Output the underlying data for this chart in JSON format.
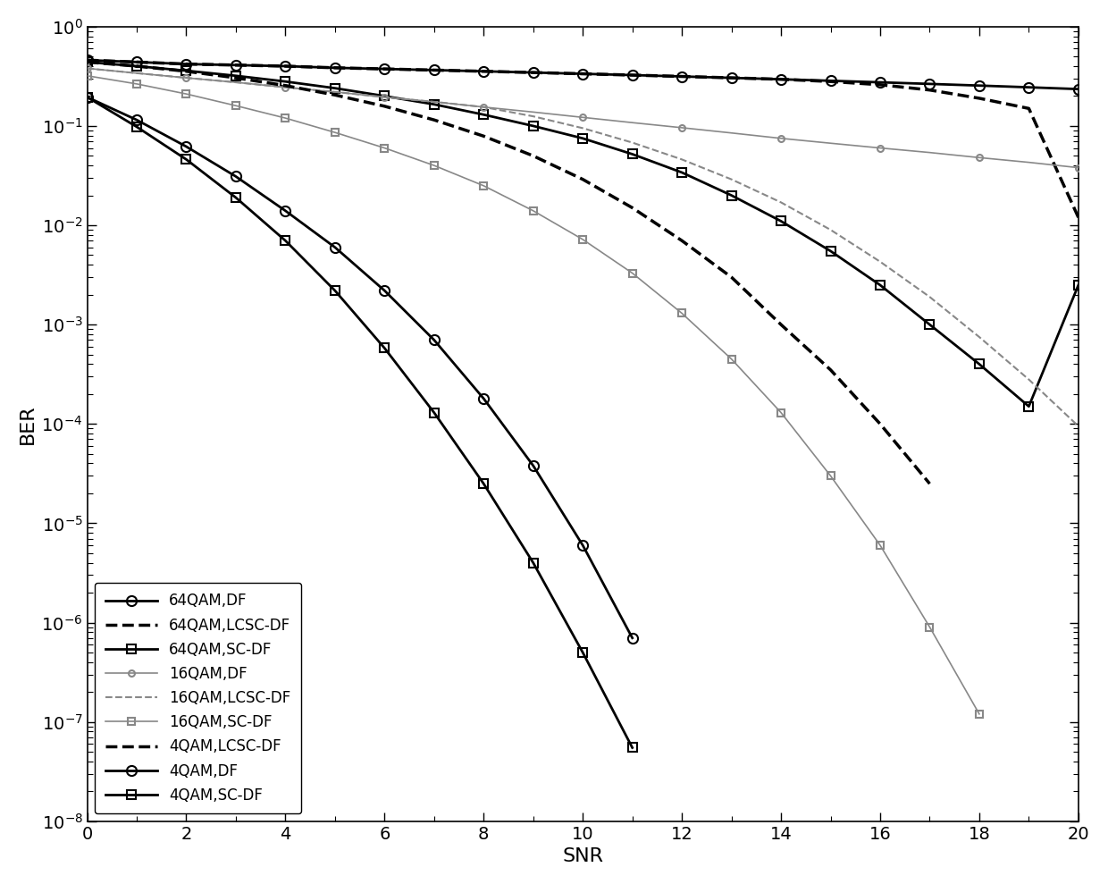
{
  "xlabel": "SNR",
  "ylabel": "BER",
  "xlim": [
    0,
    20
  ],
  "background_color": "#ffffff",
  "tick_fontsize": 14,
  "label_fontsize": 16,
  "legend_fontsize": 12,
  "series": [
    {
      "label": "64QAM,DF",
      "snr": [
        0,
        1,
        2,
        3,
        4,
        5,
        6,
        7,
        8,
        9,
        10,
        11,
        12,
        13,
        14,
        15,
        16,
        17,
        18,
        19,
        20
      ],
      "ber": [
        0.46,
        0.44,
        0.42,
        0.41,
        0.4,
        0.385,
        0.375,
        0.365,
        0.355,
        0.345,
        0.335,
        0.325,
        0.315,
        0.305,
        0.295,
        0.285,
        0.275,
        0.265,
        0.255,
        0.245,
        0.235
      ],
      "linestyle": "-",
      "marker": "o",
      "color": "#000000",
      "lw": 2.0,
      "ms": 8,
      "markevery": 1,
      "gray": false
    },
    {
      "label": "64QAM,LCSC-DF",
      "snr": [
        0,
        1,
        2,
        3,
        4,
        5,
        6,
        7,
        8,
        9,
        10,
        11,
        12,
        13,
        14,
        15,
        16,
        17,
        18,
        19,
        20
      ],
      "ber": [
        0.46,
        0.44,
        0.42,
        0.41,
        0.4,
        0.385,
        0.375,
        0.365,
        0.355,
        0.345,
        0.335,
        0.325,
        0.315,
        0.305,
        0.295,
        0.28,
        0.26,
        0.23,
        0.19,
        0.15,
        0.012
      ],
      "linestyle": "--",
      "marker": "",
      "color": "#000000",
      "lw": 2.5,
      "ms": 0,
      "markevery": 1,
      "gray": false
    },
    {
      "label": "64QAM,SC-DF",
      "snr": [
        0,
        1,
        2,
        3,
        4,
        5,
        6,
        7,
        8,
        9,
        10,
        11,
        12,
        13,
        14,
        15,
        16,
        17,
        18,
        19,
        20
      ],
      "ber": [
        0.44,
        0.4,
        0.36,
        0.32,
        0.28,
        0.24,
        0.2,
        0.165,
        0.13,
        0.1,
        0.075,
        0.052,
        0.034,
        0.02,
        0.011,
        0.0055,
        0.0025,
        0.001,
        0.0004,
        0.00015,
        0.0025
      ],
      "linestyle": "-",
      "marker": "s",
      "color": "#000000",
      "lw": 2.0,
      "ms": 7,
      "markevery": 1,
      "gray": false
    },
    {
      "label": "16QAM,DF",
      "snr": [
        0,
        1,
        2,
        3,
        4,
        5,
        6,
        7,
        8,
        9,
        10,
        11,
        12,
        13,
        14,
        15,
        16,
        17,
        18,
        19,
        20
      ],
      "ber": [
        0.38,
        0.34,
        0.305,
        0.275,
        0.245,
        0.22,
        0.195,
        0.175,
        0.155,
        0.138,
        0.122,
        0.108,
        0.096,
        0.085,
        0.075,
        0.067,
        0.06,
        0.054,
        0.048,
        0.043,
        0.038
      ],
      "linestyle": "-",
      "marker": "o",
      "color": "#888888",
      "lw": 1.2,
      "ms": 5,
      "markevery": 2,
      "gray": true
    },
    {
      "label": "16QAM,LCSC-DF",
      "snr": [
        0,
        1,
        2,
        3,
        4,
        5,
        6,
        7,
        8,
        9,
        10,
        11,
        12,
        13,
        14,
        15,
        16,
        17,
        18,
        19,
        20
      ],
      "ber": [
        0.38,
        0.34,
        0.305,
        0.275,
        0.245,
        0.22,
        0.195,
        0.175,
        0.155,
        0.125,
        0.095,
        0.068,
        0.046,
        0.029,
        0.017,
        0.009,
        0.0043,
        0.0019,
        0.00075,
        0.00028,
        9.5e-05
      ],
      "linestyle": "--",
      "marker": "",
      "color": "#888888",
      "lw": 1.5,
      "ms": 0,
      "markevery": 1,
      "gray": true
    },
    {
      "label": "16QAM,SC-DF",
      "snr": [
        0,
        1,
        2,
        3,
        4,
        5,
        6,
        7,
        8,
        9,
        10,
        11,
        12,
        13,
        14,
        15,
        16,
        17,
        18
      ],
      "ber": [
        0.32,
        0.265,
        0.21,
        0.16,
        0.12,
        0.086,
        0.06,
        0.04,
        0.025,
        0.014,
        0.0072,
        0.0033,
        0.0013,
        0.00045,
        0.00013,
        3e-05,
        6e-06,
        9e-07,
        1.2e-07
      ],
      "linestyle": "-",
      "marker": "s",
      "color": "#888888",
      "lw": 1.2,
      "ms": 6,
      "markevery": 1,
      "gray": true
    },
    {
      "label": "4QAM,LCSC-DF",
      "snr": [
        0,
        1,
        2,
        3,
        4,
        5,
        6,
        7,
        8,
        9,
        10,
        11,
        12,
        13,
        14,
        15,
        16,
        17
      ],
      "ber": [
        0.44,
        0.4,
        0.355,
        0.305,
        0.255,
        0.205,
        0.158,
        0.115,
        0.079,
        0.05,
        0.029,
        0.015,
        0.007,
        0.003,
        0.001,
        0.00035,
        0.0001,
        2.5e-05
      ],
      "linestyle": "--",
      "marker": "",
      "color": "#000000",
      "lw": 2.5,
      "ms": 0,
      "markevery": 1,
      "gray": false
    },
    {
      "label": "4QAM,DF",
      "snr": [
        0,
        1,
        2,
        3,
        4,
        5,
        6,
        7,
        8,
        9,
        10,
        11
      ],
      "ber": [
        0.195,
        0.115,
        0.062,
        0.031,
        0.014,
        0.006,
        0.0022,
        0.0007,
        0.00018,
        3.8e-05,
        6e-06,
        7e-07
      ],
      "linestyle": "-",
      "marker": "o",
      "color": "#000000",
      "lw": 2.0,
      "ms": 8,
      "markevery": 1,
      "gray": false
    },
    {
      "label": "4QAM,SC-DF",
      "snr": [
        0,
        1,
        2,
        3,
        4,
        5,
        6,
        7,
        8,
        9,
        10,
        11,
        12,
        13,
        14,
        15,
        16
      ],
      "ber": [
        0.195,
        0.098,
        0.046,
        0.019,
        0.007,
        0.0022,
        0.00058,
        0.00013,
        2.5e-05,
        4e-06,
        5e-07,
        5.5e-08,
        null,
        null,
        null,
        null,
        null
      ],
      "linestyle": "-",
      "marker": "s",
      "color": "#000000",
      "lw": 2.0,
      "ms": 7,
      "markevery": 1,
      "gray": false
    }
  ]
}
